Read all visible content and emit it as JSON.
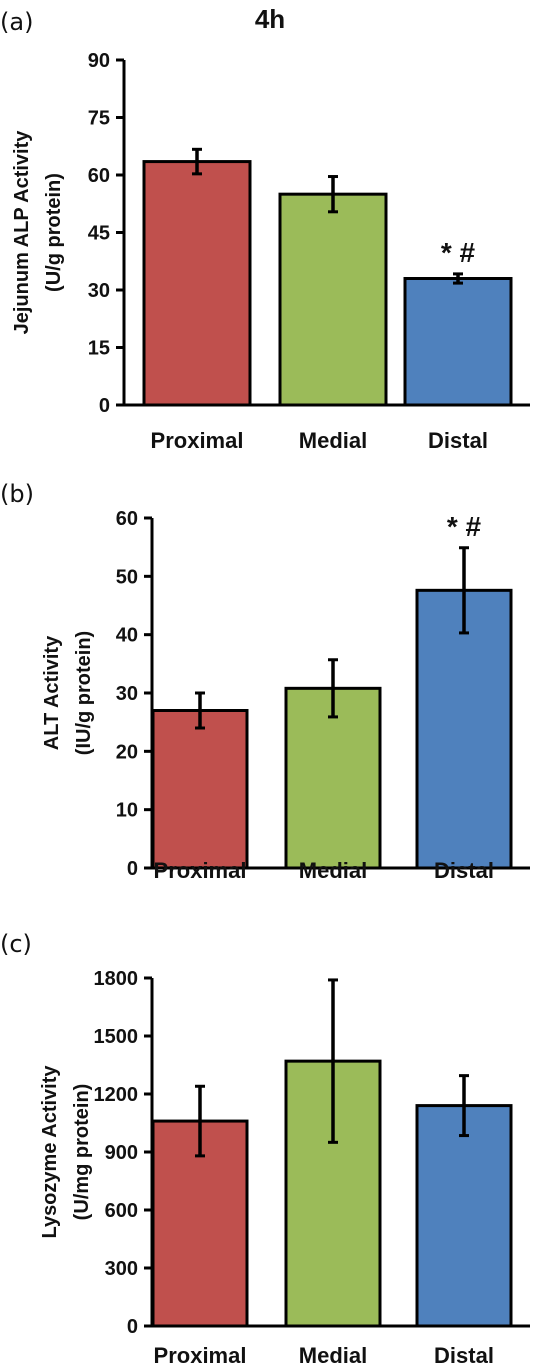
{
  "chart_data": [
    {
      "panel": "(a)",
      "type": "bar",
      "title": "4h",
      "ylabel": [
        "Jejunum ALP Activity",
        "(U/g protein)"
      ],
      "categories": [
        "Proximal",
        "Medial",
        "Distal"
      ],
      "values": [
        63.5,
        55,
        33
      ],
      "errors": [
        3.2,
        4.6,
        1.2
      ],
      "ylim": [
        0,
        90
      ],
      "yticks": [
        "0",
        "15",
        "30",
        "45",
        "60",
        "75",
        "90"
      ],
      "colors": [
        "#c0504d",
        "#9bbb59",
        "#4f81bd"
      ],
      "annotations": [
        {
          "category": "Distal",
          "text": "* #"
        }
      ],
      "grid": false
    },
    {
      "panel": "(b)",
      "type": "bar",
      "title": "",
      "ylabel": [
        "ALT Activity",
        "(IU/g protein)"
      ],
      "categories": [
        "Proximal",
        "Medial",
        "Distal"
      ],
      "values": [
        27,
        30.8,
        47.6
      ],
      "errors": [
        3,
        4.9,
        7.3
      ],
      "ylim": [
        0,
        60
      ],
      "yticks": [
        "0",
        "10",
        "20",
        "30",
        "40",
        "50",
        "60"
      ],
      "colors": [
        "#c0504d",
        "#9bbb59",
        "#4f81bd"
      ],
      "annotations": [
        {
          "category": "Distal",
          "text": "* #"
        }
      ],
      "grid": false
    },
    {
      "panel": "(c)",
      "type": "bar",
      "title": "",
      "ylabel": [
        "Lysozyme Activity",
        "(U/mg protein)"
      ],
      "categories": [
        "Proximal",
        "Medial",
        "Distal"
      ],
      "values": [
        1060,
        1370,
        1140
      ],
      "errors": [
        180,
        420,
        155
      ],
      "ylim": [
        0,
        1800
      ],
      "yticks": [
        "0",
        "300",
        "600",
        "900",
        "1200",
        "1500",
        "1800"
      ],
      "colors": [
        "#c0504d",
        "#9bbb59",
        "#4f81bd"
      ],
      "annotations": [],
      "grid": false
    }
  ]
}
